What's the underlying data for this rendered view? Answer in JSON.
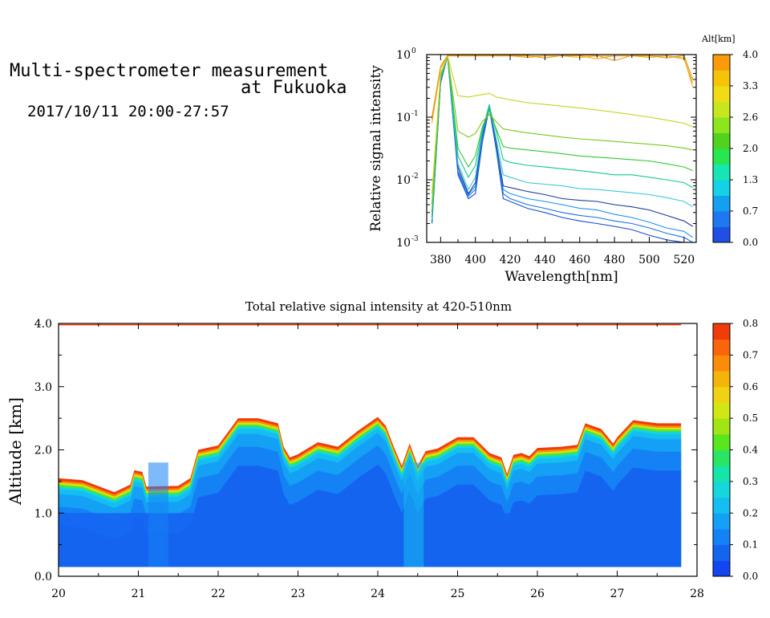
{
  "header": {
    "title_line1": "Multi-spectrometer measurement",
    "title_line2": "at Fukuoka",
    "date_range": "2017/10/11 20:00-27:57"
  },
  "chart_data": [
    {
      "type": "line",
      "ylabel": "Relative signal intensity",
      "xlabel": "Wavelength[nm]",
      "ylog": true,
      "xlim": [
        372,
        527
      ],
      "ylim": [
        0.001,
        1
      ],
      "x_ticks": [
        380,
        400,
        420,
        440,
        460,
        480,
        500,
        520
      ],
      "y_ticks": [
        {
          "value": 0.001,
          "base": "10",
          "exp": "-3"
        },
        {
          "value": 0.01,
          "base": "10",
          "exp": "-2"
        },
        {
          "value": 0.1,
          "base": "10",
          "exp": "-1"
        },
        {
          "value": 1,
          "base": "10",
          "exp": "0"
        }
      ],
      "colorbar": {
        "label": "Alt[km]",
        "tick_labels": [
          "0.0",
          "0.7",
          "1.3",
          "2.0",
          "2.6",
          "3.3",
          "4.0"
        ],
        "colors": [
          "#1e50e6",
          "#1e78f0",
          "#14a0f0",
          "#14d2e6",
          "#14e6b4",
          "#28e650",
          "#50d21e",
          "#8ce61e",
          "#c8e61e",
          "#f0dc14",
          "#f5c30a",
          "#fa9b0a"
        ]
      },
      "x": [
        375,
        380,
        384,
        390,
        396,
        400,
        404,
        408,
        412,
        416,
        420,
        430,
        440,
        450,
        460,
        470,
        480,
        490,
        500,
        510,
        520,
        525
      ],
      "series": [
        {
          "color": "#1550d0",
          "values": [
            0.002,
            0.35,
            0.95,
            0.012,
            0.005,
            0.006,
            0.04,
            0.14,
            0.03,
            0.005,
            0.0045,
            0.0035,
            0.003,
            0.0025,
            0.0022,
            0.002,
            0.0018,
            0.0016,
            0.0013,
            0.0011,
            0.001,
            0.001
          ]
        },
        {
          "color": "#1e6ee6",
          "values": [
            0.002,
            0.36,
            0.95,
            0.013,
            0.0055,
            0.007,
            0.045,
            0.15,
            0.032,
            0.006,
            0.005,
            0.004,
            0.0035,
            0.003,
            0.0027,
            0.0025,
            0.0022,
            0.002,
            0.0017,
            0.0014,
            0.0012,
            0.001
          ]
        },
        {
          "color": "#1e90f0",
          "values": [
            0.0021,
            0.37,
            0.95,
            0.014,
            0.0058,
            0.008,
            0.05,
            0.15,
            0.035,
            0.007,
            0.006,
            0.005,
            0.0045,
            0.004,
            0.0035,
            0.0033,
            0.0028,
            0.0025,
            0.0021,
            0.0017,
            0.0015,
            0.0012
          ]
        },
        {
          "color": "#1e3c96",
          "values": [
            0.0022,
            0.38,
            0.95,
            0.016,
            0.006,
            0.009,
            0.055,
            0.16,
            0.038,
            0.008,
            0.0075,
            0.0065,
            0.0058,
            0.005,
            0.0047,
            0.0045,
            0.004,
            0.0037,
            0.0033,
            0.0027,
            0.0022,
            0.0018
          ]
        },
        {
          "color": "#3cc8d2",
          "values": [
            0.0023,
            0.4,
            0.95,
            0.018,
            0.007,
            0.011,
            0.06,
            0.16,
            0.045,
            0.012,
            0.011,
            0.009,
            0.0085,
            0.008,
            0.0072,
            0.007,
            0.0066,
            0.0062,
            0.0058,
            0.0052,
            0.0045,
            0.0037
          ]
        },
        {
          "color": "#14c88c",
          "values": [
            0.0025,
            0.42,
            0.95,
            0.024,
            0.011,
            0.017,
            0.065,
            0.15,
            0.06,
            0.021,
            0.019,
            0.017,
            0.016,
            0.015,
            0.014,
            0.013,
            0.012,
            0.012,
            0.011,
            0.01,
            0.009,
            0.0075
          ]
        },
        {
          "color": "#32c832",
          "values": [
            0.003,
            0.45,
            0.95,
            0.032,
            0.016,
            0.024,
            0.07,
            0.13,
            0.065,
            0.034,
            0.032,
            0.03,
            0.028,
            0.026,
            0.024,
            0.023,
            0.022,
            0.021,
            0.02,
            0.018,
            0.016,
            0.014
          ]
        },
        {
          "color": "#78c81e",
          "values": [
            0.004,
            0.48,
            0.95,
            0.06,
            0.048,
            0.055,
            0.085,
            0.11,
            0.085,
            0.065,
            0.062,
            0.056,
            0.052,
            0.048,
            0.045,
            0.043,
            0.041,
            0.039,
            0.037,
            0.035,
            0.032,
            0.03
          ]
        },
        {
          "color": "#c8d21e",
          "values": [
            0.006,
            0.5,
            0.95,
            0.22,
            0.21,
            0.22,
            0.23,
            0.24,
            0.21,
            0.2,
            0.19,
            0.17,
            0.16,
            0.15,
            0.14,
            0.13,
            0.12,
            0.11,
            0.1,
            0.09,
            0.08,
            0.07
          ]
        },
        {
          "color": "#f0b41e",
          "values": [
            0.08,
            0.6,
            0.95,
            0.95,
            0.95,
            0.95,
            0.95,
            0.95,
            0.95,
            0.95,
            0.95,
            0.95,
            0.95,
            0.95,
            0.9,
            0.95,
            0.95,
            0.95,
            0.95,
            0.95,
            0.9,
            0.3
          ]
        },
        {
          "color": "#f5a014",
          "values": [
            0.09,
            0.62,
            0.96,
            0.96,
            0.96,
            0.96,
            0.96,
            0.96,
            0.96,
            0.96,
            0.96,
            0.9,
            0.96,
            0.96,
            0.96,
            0.85,
            0.96,
            0.96,
            0.9,
            0.96,
            0.85,
            0.35
          ]
        },
        {
          "color": "#e69614",
          "values": [
            0.1,
            0.65,
            0.97,
            0.97,
            0.97,
            0.97,
            0.97,
            0.97,
            0.97,
            0.97,
            0.97,
            0.97,
            0.88,
            0.97,
            0.97,
            0.97,
            0.8,
            0.97,
            0.97,
            0.88,
            0.97,
            0.4
          ]
        }
      ]
    },
    {
      "type": "heatmap",
      "title": "Total relative signal intensity at 420-510nm",
      "ylabel": "Altitude [km]",
      "xlim": [
        20,
        28
      ],
      "ylim": [
        0,
        4
      ],
      "x_ticks": [
        20,
        21,
        22,
        23,
        24,
        25,
        26,
        27,
        28
      ],
      "y_ticks": [
        0,
        1,
        2,
        3,
        4
      ],
      "y_tick_labels": [
        "0.0",
        "1.0",
        "2.0",
        "3.0",
        "4.0"
      ],
      "data_x_end": 27.8,
      "base_altitude": 0.15,
      "colorbar": {
        "range": [
          0,
          0.8
        ],
        "tick_labels": [
          "0.0",
          "0.1",
          "0.2",
          "0.3",
          "0.4",
          "0.5",
          "0.6",
          "0.7",
          "0.8"
        ],
        "colors": [
          "#1446f0",
          "#1464f0",
          "#1482f5",
          "#14a0f5",
          "#14bef0",
          "#14d7dc",
          "#14e6aa",
          "#28e664",
          "#5ae61e",
          "#a0e614",
          "#d2e614",
          "#f0d214",
          "#f5b40a",
          "#fa8c0a",
          "#fa640a",
          "#f03c0a"
        ]
      },
      "cloud_top": {
        "x": [
          20.0,
          20.3,
          20.7,
          20.9,
          20.95,
          21.05,
          21.1,
          21.5,
          21.65,
          21.75,
          22.0,
          22.25,
          22.5,
          22.75,
          22.82,
          22.9,
          23.0,
          23.25,
          23.5,
          23.75,
          24.0,
          24.1,
          24.2,
          24.3,
          24.4,
          24.5,
          24.6,
          24.75,
          25.0,
          25.2,
          25.4,
          25.55,
          25.62,
          25.7,
          25.8,
          25.9,
          26.0,
          26.3,
          26.5,
          26.6,
          26.8,
          26.95,
          27.0,
          27.2,
          27.5,
          27.8
        ],
        "y": [
          1.55,
          1.52,
          1.33,
          1.45,
          1.68,
          1.65,
          1.42,
          1.43,
          1.55,
          2.0,
          2.07,
          2.5,
          2.5,
          2.42,
          2.05,
          1.88,
          1.93,
          2.12,
          2.05,
          2.3,
          2.52,
          2.38,
          2.05,
          1.75,
          2.1,
          1.75,
          1.98,
          2.02,
          2.2,
          2.2,
          1.95,
          1.88,
          1.62,
          1.92,
          1.95,
          1.9,
          2.03,
          2.05,
          2.08,
          2.42,
          2.33,
          2.1,
          2.2,
          2.47,
          2.42,
          2.42
        ]
      },
      "gradient_stops": [
        {
          "depth": 0.0,
          "value": 0.78
        },
        {
          "depth": 0.04,
          "value": 0.65
        },
        {
          "depth": 0.07,
          "value": 0.52
        },
        {
          "depth": 0.1,
          "value": 0.4
        },
        {
          "depth": 0.13,
          "value": 0.3
        },
        {
          "depth": 0.17,
          "value": 0.22
        },
        {
          "depth": 0.25,
          "value": 0.17
        },
        {
          "depth": 0.45,
          "value": 0.12
        },
        {
          "depth": 0.75,
          "value": 0.08
        }
      ],
      "dips": [
        {
          "x": 24.45,
          "width": 0.25,
          "value": 0.22
        },
        {
          "x": 21.25,
          "width": 0.25,
          "value": 0.13
        }
      ],
      "low_layer": {
        "top": 1.0,
        "value": 0.06
      },
      "top_line": {
        "altitude": 3.98,
        "value": 0.8
      }
    }
  ]
}
